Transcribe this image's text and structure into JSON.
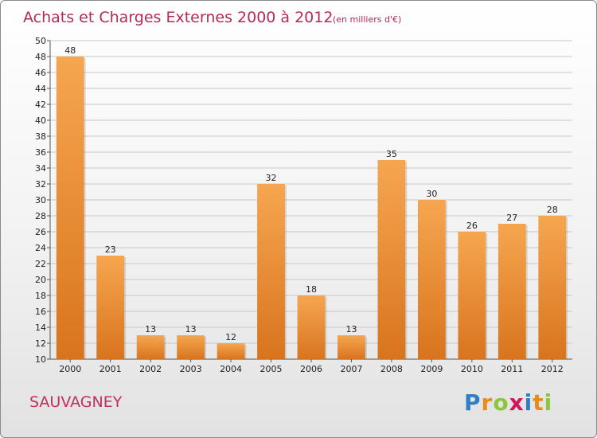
{
  "header": {
    "title": "Achats et Charges Externes 2000 à 2012",
    "subtitle": "(en milliers d'€)"
  },
  "footer": {
    "place": "SAUVAGNEY",
    "logo": {
      "text": "Proxiti",
      "letters": [
        {
          "ch": "P",
          "color": "#2f7fc8"
        },
        {
          "ch": "r",
          "color": "#e98a1c"
        },
        {
          "ch": "o",
          "color": "#8cc63f"
        },
        {
          "ch": "x",
          "color": "#d4145a"
        },
        {
          "ch": "i",
          "color": "#2f7fc8"
        },
        {
          "ch": "t",
          "color": "#e98a1c"
        },
        {
          "ch": "i",
          "color": "#8cc63f"
        }
      ]
    }
  },
  "colors": {
    "bar_top": "#f6a650",
    "bar_bottom": "#d9741e",
    "grid": "#c8c8c8"
  },
  "chart_data": {
    "type": "bar",
    "title": "Achats et Charges Externes 2000 à 2012",
    "subtitle": "(en milliers d'€)",
    "categories": [
      "2000",
      "2001",
      "2002",
      "2003",
      "2004",
      "2005",
      "2006",
      "2007",
      "2008",
      "2009",
      "2010",
      "2011",
      "2012"
    ],
    "values": [
      48,
      23,
      13,
      13,
      12,
      32,
      18,
      13,
      35,
      30,
      26,
      27,
      28
    ],
    "ylim": [
      10,
      50
    ],
    "ytick_step": 2,
    "grid": true,
    "data_labels": true
  }
}
